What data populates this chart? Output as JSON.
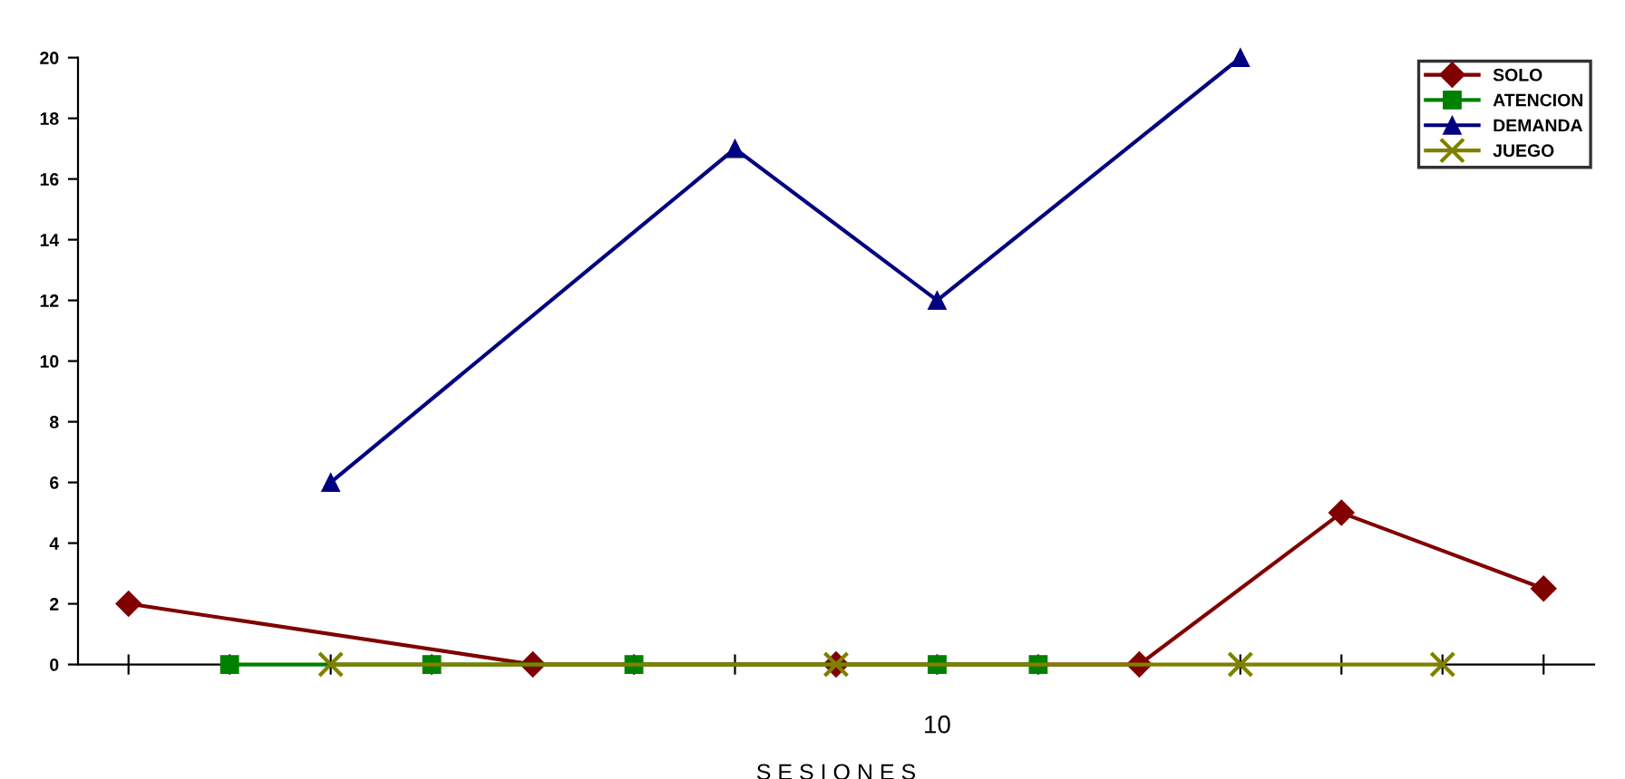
{
  "chart_data": {
    "type": "line",
    "xlabel": "S E S I O N E S",
    "categories": [
      null,
      null,
      null,
      null,
      null,
      null,
      null,
      null,
      "10",
      null,
      null,
      null,
      null,
      null,
      null
    ],
    "series": [
      {
        "name": "SOLO",
        "color": "#800000",
        "marker": "diamond",
        "values": [
          2,
          null,
          null,
          null,
          0,
          null,
          null,
          0,
          null,
          null,
          0,
          null,
          5,
          null,
          2.5
        ]
      },
      {
        "name": "ATENCION",
        "color": "#008000",
        "marker": "square",
        "values": [
          null,
          0,
          null,
          0,
          null,
          0,
          null,
          null,
          0,
          0,
          null,
          null,
          null,
          null,
          null
        ]
      },
      {
        "name": "DEMANDA",
        "color": "#000080",
        "marker": "triangle",
        "values": [
          null,
          null,
          6,
          null,
          null,
          null,
          17,
          null,
          12,
          null,
          null,
          20,
          null,
          null,
          null
        ]
      },
      {
        "name": "JUEGO",
        "color": "#808000",
        "marker": "cross",
        "values": [
          null,
          null,
          0,
          null,
          null,
          null,
          null,
          0,
          null,
          null,
          null,
          0,
          null,
          0,
          null
        ]
      }
    ],
    "ylim": [
      0,
      20
    ],
    "yticks": [
      0,
      2,
      4,
      6,
      8,
      10,
      12,
      14,
      16,
      18,
      20
    ],
    "grid": false,
    "legend": "top right"
  }
}
